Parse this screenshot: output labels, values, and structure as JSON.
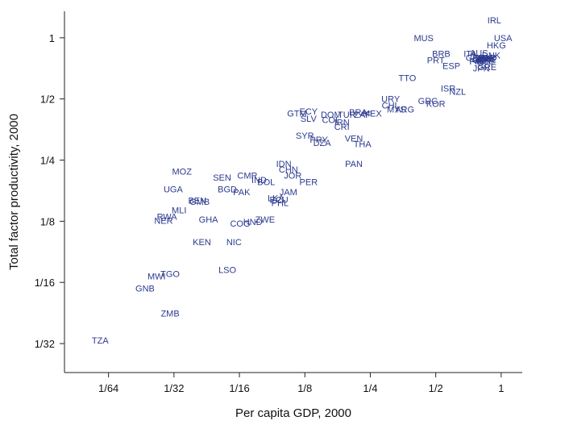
{
  "chart_data": {
    "type": "scatter",
    "xlabel": "Per capita GDP, 2000",
    "ylabel": "Total factor productivity, 2000",
    "x_scale": "log2",
    "y_scale": "log2",
    "xlim": [
      0.0098,
      1.25
    ],
    "ylim": [
      0.0225,
      1.35
    ],
    "x_ticks": [
      {
        "value": 0.015625,
        "label": "1/64"
      },
      {
        "value": 0.03125,
        "label": "1/32"
      },
      {
        "value": 0.0625,
        "label": "1/16"
      },
      {
        "value": 0.125,
        "label": "1/8"
      },
      {
        "value": 0.25,
        "label": "1/4"
      },
      {
        "value": 0.5,
        "label": "1/2"
      },
      {
        "value": 1,
        "label": "1"
      }
    ],
    "y_ticks": [
      {
        "value": 1,
        "label": "1"
      },
      {
        "value": 0.5,
        "label": "1/2"
      },
      {
        "value": 0.25,
        "label": "1/4"
      },
      {
        "value": 0.125,
        "label": "1/8"
      },
      {
        "value": 0.0625,
        "label": "1/16"
      },
      {
        "value": 0.03125,
        "label": "1/32"
      }
    ],
    "grid": false,
    "legend": "none",
    "point_color": "#2b3a8f",
    "points": [
      {
        "label": "IRL",
        "x": 0.93,
        "y": 1.22
      },
      {
        "label": "USA",
        "x": 1.02,
        "y": 1.0
      },
      {
        "label": "MUS",
        "x": 0.44,
        "y": 1.0
      },
      {
        "label": "HKG",
        "x": 0.95,
        "y": 0.92
      },
      {
        "label": "BRB",
        "x": 0.53,
        "y": 0.835
      },
      {
        "label": "ITA",
        "x": 0.72,
        "y": 0.835
      },
      {
        "label": "AUS",
        "x": 0.79,
        "y": 0.845
      },
      {
        "label": "DNK",
        "x": 0.9,
        "y": 0.82
      },
      {
        "label": "NOR",
        "x": 0.85,
        "y": 0.8
      },
      {
        "label": "CHE",
        "x": 0.86,
        "y": 0.785
      },
      {
        "label": "PRT",
        "x": 0.5,
        "y": 0.775
      },
      {
        "label": "CAN",
        "x": 0.81,
        "y": 0.78
      },
      {
        "label": "SWE",
        "x": 0.82,
        "y": 0.79
      },
      {
        "label": "FRA",
        "x": 0.85,
        "y": 0.775
      },
      {
        "label": "NLD",
        "x": 0.87,
        "y": 0.8
      },
      {
        "label": "BEL",
        "x": 0.84,
        "y": 0.77
      },
      {
        "label": "FIN",
        "x": 0.77,
        "y": 0.765
      },
      {
        "label": "AUT",
        "x": 0.83,
        "y": 0.775
      },
      {
        "label": "GBR",
        "x": 0.76,
        "y": 0.8
      },
      {
        "label": "ESP",
        "x": 0.59,
        "y": 0.73
      },
      {
        "label": "JPN",
        "x": 0.81,
        "y": 0.71
      },
      {
        "label": "GRE",
        "x": 0.86,
        "y": 0.72
      },
      {
        "label": "TTO",
        "x": 0.37,
        "y": 0.635
      },
      {
        "label": "ISR",
        "x": 0.57,
        "y": 0.565
      },
      {
        "label": "NZL",
        "x": 0.63,
        "y": 0.545
      },
      {
        "label": "URY",
        "x": 0.31,
        "y": 0.5
      },
      {
        "label": "GRC",
        "x": 0.46,
        "y": 0.49
      },
      {
        "label": "KOR",
        "x": 0.5,
        "y": 0.475
      },
      {
        "label": "CHL",
        "x": 0.31,
        "y": 0.465
      },
      {
        "label": "MYS",
        "x": 0.33,
        "y": 0.445
      },
      {
        "label": "ARG",
        "x": 0.36,
        "y": 0.445
      },
      {
        "label": "ECY",
        "x": 0.13,
        "y": 0.435
      },
      {
        "label": "GTM",
        "x": 0.115,
        "y": 0.425
      },
      {
        "label": "DOM",
        "x": 0.165,
        "y": 0.42
      },
      {
        "label": "TUR",
        "x": 0.195,
        "y": 0.42
      },
      {
        "label": "BRA",
        "x": 0.22,
        "y": 0.43
      },
      {
        "label": "MEX",
        "x": 0.255,
        "y": 0.425
      },
      {
        "label": "ZAF",
        "x": 0.23,
        "y": 0.42
      },
      {
        "label": "SLV",
        "x": 0.13,
        "y": 0.4
      },
      {
        "label": "COL",
        "x": 0.165,
        "y": 0.395
      },
      {
        "label": "IRN",
        "x": 0.185,
        "y": 0.385
      },
      {
        "label": "CRI",
        "x": 0.185,
        "y": 0.365
      },
      {
        "label": "SYR",
        "x": 0.125,
        "y": 0.33
      },
      {
        "label": "PRY",
        "x": 0.145,
        "y": 0.315
      },
      {
        "label": "VEN",
        "x": 0.21,
        "y": 0.32
      },
      {
        "label": "DZA",
        "x": 0.15,
        "y": 0.305
      },
      {
        "label": "THA",
        "x": 0.23,
        "y": 0.3
      },
      {
        "label": "PAN",
        "x": 0.21,
        "y": 0.24
      },
      {
        "label": "MOZ",
        "x": 0.034,
        "y": 0.22
      },
      {
        "label": "IDN",
        "x": 0.1,
        "y": 0.24
      },
      {
        "label": "CHN",
        "x": 0.105,
        "y": 0.225
      },
      {
        "label": "SEN",
        "x": 0.052,
        "y": 0.205
      },
      {
        "label": "CMR",
        "x": 0.068,
        "y": 0.21
      },
      {
        "label": "JOR",
        "x": 0.11,
        "y": 0.21
      },
      {
        "label": "IND",
        "x": 0.077,
        "y": 0.2
      },
      {
        "label": "BOL",
        "x": 0.083,
        "y": 0.195
      },
      {
        "label": "PER",
        "x": 0.13,
        "y": 0.195
      },
      {
        "label": "UGA",
        "x": 0.031,
        "y": 0.18
      },
      {
        "label": "BGD",
        "x": 0.055,
        "y": 0.18
      },
      {
        "label": "PAK",
        "x": 0.064,
        "y": 0.174
      },
      {
        "label": "JAM",
        "x": 0.105,
        "y": 0.174
      },
      {
        "label": "LKA",
        "x": 0.092,
        "y": 0.163
      },
      {
        "label": "ECU",
        "x": 0.095,
        "y": 0.16
      },
      {
        "label": "PHL",
        "x": 0.096,
        "y": 0.154
      },
      {
        "label": "BEN",
        "x": 0.04,
        "y": 0.158
      },
      {
        "label": "GMB",
        "x": 0.041,
        "y": 0.156
      },
      {
        "label": "MLI",
        "x": 0.033,
        "y": 0.142
      },
      {
        "label": "RWA",
        "x": 0.029,
        "y": 0.132
      },
      {
        "label": "NER",
        "x": 0.028,
        "y": 0.126
      },
      {
        "label": "GHA",
        "x": 0.045,
        "y": 0.128
      },
      {
        "label": "COG",
        "x": 0.063,
        "y": 0.122
      },
      {
        "label": "HND",
        "x": 0.072,
        "y": 0.124
      },
      {
        "label": "ZWE",
        "x": 0.082,
        "y": 0.128
      },
      {
        "label": "KEN",
        "x": 0.042,
        "y": 0.099
      },
      {
        "label": "NIC",
        "x": 0.059,
        "y": 0.099
      },
      {
        "label": "LSO",
        "x": 0.055,
        "y": 0.072
      },
      {
        "label": "TGO",
        "x": 0.03,
        "y": 0.069
      },
      {
        "label": "MWI",
        "x": 0.026,
        "y": 0.067
      },
      {
        "label": "GNB",
        "x": 0.023,
        "y": 0.0585
      },
      {
        "label": "ZMB",
        "x": 0.03,
        "y": 0.044
      },
      {
        "label": "TZA",
        "x": 0.0143,
        "y": 0.0325
      }
    ]
  }
}
